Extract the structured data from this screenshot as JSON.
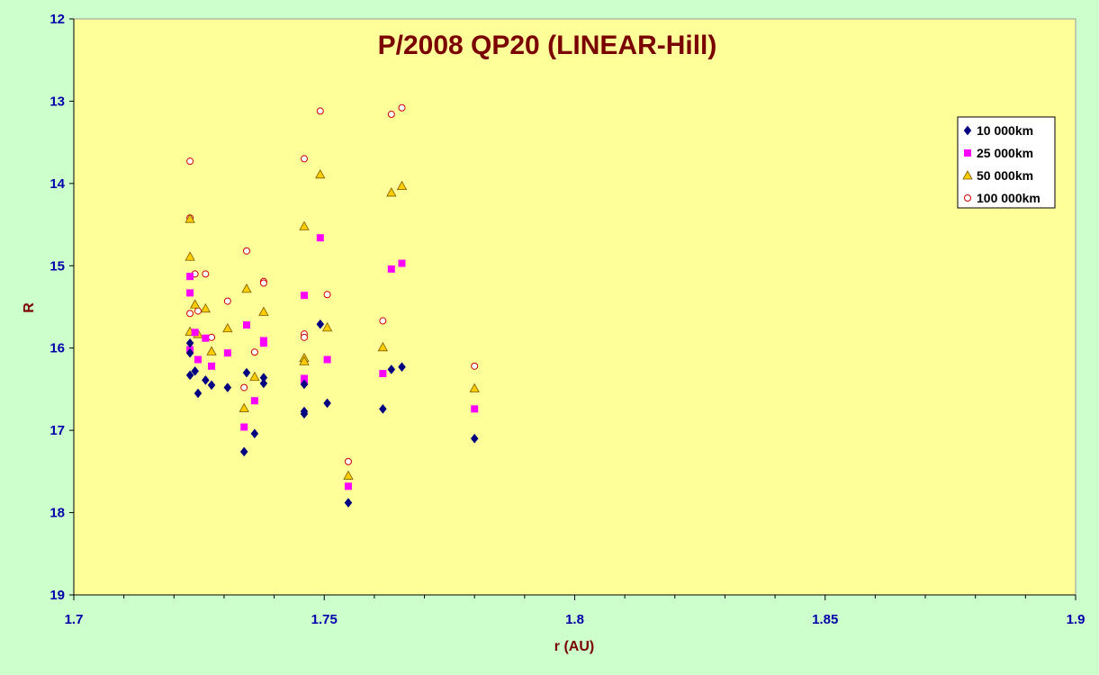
{
  "chart_data": {
    "type": "scatter",
    "title": "P/2008 QP20 (LINEAR-Hill)",
    "xlabel": "r (AU)",
    "ylabel": "R",
    "xlim": [
      1.7,
      1.9
    ],
    "ylim": [
      12,
      19
    ],
    "y_inverted": true,
    "x_ticks": [
      "1.7",
      "1.75",
      "1.8",
      "1.85",
      "1.9"
    ],
    "y_ticks": [
      "12",
      "13",
      "14",
      "15",
      "16",
      "17",
      "18",
      "19"
    ],
    "grid": false,
    "legend_position": "right",
    "colors": {
      "plot_bg": "#ffff99",
      "page_bg": "#ccffcc",
      "tick_text": "#0000aa",
      "title_text": "#7a0000"
    },
    "series": [
      {
        "name": "10 000km",
        "marker": "diamond",
        "color": "#000080",
        "points": [
          [
            1.7232,
            15.94
          ],
          [
            1.7232,
            16.06
          ],
          [
            1.7232,
            16.33
          ],
          [
            1.7242,
            16.28
          ],
          [
            1.7248,
            16.55
          ],
          [
            1.7263,
            16.39
          ],
          [
            1.7275,
            16.45
          ],
          [
            1.7307,
            16.48
          ],
          [
            1.734,
            17.26
          ],
          [
            1.7345,
            16.3
          ],
          [
            1.7361,
            17.04
          ],
          [
            1.7379,
            16.36
          ],
          [
            1.7379,
            16.43
          ],
          [
            1.746,
            16.44
          ],
          [
            1.746,
            16.77
          ],
          [
            1.746,
            16.8
          ],
          [
            1.7492,
            15.71
          ],
          [
            1.7506,
            16.67
          ],
          [
            1.7548,
            17.88
          ],
          [
            1.7617,
            16.74
          ],
          [
            1.7634,
            16.26
          ],
          [
            1.7655,
            16.23
          ],
          [
            1.78,
            17.1
          ]
        ]
      },
      {
        "name": "25 000km",
        "marker": "square",
        "color": "#ff00ff",
        "points": [
          [
            1.7232,
            15.13
          ],
          [
            1.7232,
            15.33
          ],
          [
            1.7232,
            16.02
          ],
          [
            1.7242,
            15.81
          ],
          [
            1.7248,
            16.14
          ],
          [
            1.7263,
            15.88
          ],
          [
            1.7275,
            16.22
          ],
          [
            1.7307,
            16.06
          ],
          [
            1.734,
            16.96
          ],
          [
            1.7345,
            15.72
          ],
          [
            1.7361,
            16.64
          ],
          [
            1.7379,
            15.91
          ],
          [
            1.7379,
            15.94
          ],
          [
            1.746,
            15.36
          ],
          [
            1.746,
            16.37
          ],
          [
            1.746,
            16.41
          ],
          [
            1.7492,
            14.66
          ],
          [
            1.7506,
            16.14
          ],
          [
            1.7548,
            17.68
          ],
          [
            1.7617,
            16.31
          ],
          [
            1.7634,
            15.04
          ],
          [
            1.7655,
            14.97
          ],
          [
            1.78,
            16.74
          ]
        ]
      },
      {
        "name": "50 000km",
        "marker": "triangle",
        "color": "#ffcc00",
        "points": [
          [
            1.7232,
            14.43
          ],
          [
            1.7232,
            14.89
          ],
          [
            1.7232,
            15.8
          ],
          [
            1.7242,
            15.47
          ],
          [
            1.7248,
            15.83
          ],
          [
            1.7263,
            15.52
          ],
          [
            1.7275,
            16.04
          ],
          [
            1.7307,
            15.76
          ],
          [
            1.734,
            16.73
          ],
          [
            1.7345,
            15.28
          ],
          [
            1.7361,
            16.35
          ],
          [
            1.7379,
            15.56
          ],
          [
            1.746,
            14.52
          ],
          [
            1.746,
            16.12
          ],
          [
            1.746,
            16.16
          ],
          [
            1.7492,
            13.89
          ],
          [
            1.7506,
            15.75
          ],
          [
            1.7548,
            17.55
          ],
          [
            1.7617,
            15.99
          ],
          [
            1.7634,
            14.11
          ],
          [
            1.7655,
            14.03
          ],
          [
            1.78,
            16.49
          ]
        ]
      },
      {
        "name": "100 000km",
        "marker": "circle",
        "color": "#cc0000",
        "points": [
          [
            1.7232,
            13.73
          ],
          [
            1.7232,
            14.42
          ],
          [
            1.7232,
            15.58
          ],
          [
            1.7242,
            15.1
          ],
          [
            1.7248,
            15.55
          ],
          [
            1.7263,
            15.1
          ],
          [
            1.7275,
            15.87
          ],
          [
            1.7307,
            15.43
          ],
          [
            1.734,
            16.48
          ],
          [
            1.7345,
            14.82
          ],
          [
            1.7361,
            16.05
          ],
          [
            1.7379,
            15.19
          ],
          [
            1.7379,
            15.21
          ],
          [
            1.746,
            13.7
          ],
          [
            1.746,
            15.83
          ],
          [
            1.746,
            15.87
          ],
          [
            1.7492,
            13.12
          ],
          [
            1.7506,
            15.35
          ],
          [
            1.7548,
            17.38
          ],
          [
            1.7617,
            15.67
          ],
          [
            1.7634,
            13.16
          ],
          [
            1.7655,
            13.08
          ],
          [
            1.78,
            16.22
          ]
        ]
      }
    ]
  }
}
